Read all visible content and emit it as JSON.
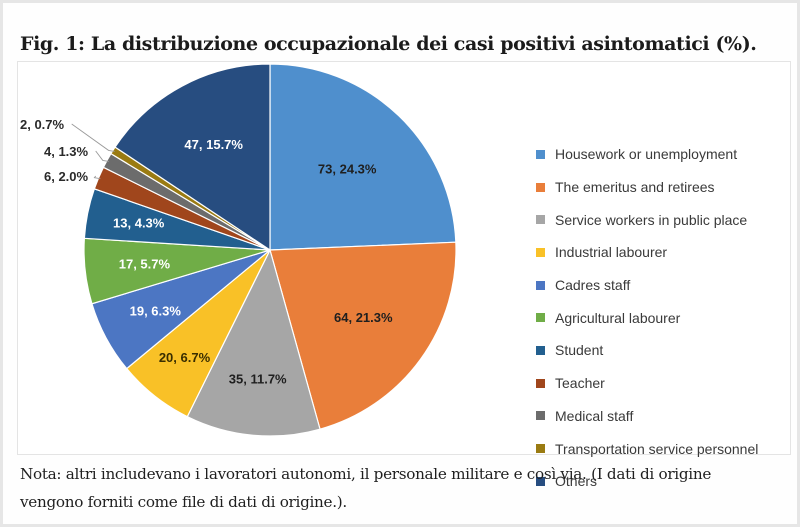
{
  "title": "Fig. 1: La distribuzione occupazionale dei casi positivi asintomatici (%).",
  "note": {
    "line1": "Nota: altri includevano i lavoratori autonomi, il personale militare e così via. (I dati di origine",
    "line2": "vengono forniti come file di dati di origine.)."
  },
  "chart_data": {
    "type": "pie",
    "start": "12 o'clock, clockwise",
    "slices": [
      {
        "label": "Housework or unemployment",
        "value": 73,
        "percent": 24.3,
        "text": "73, 24.3%",
        "color": "#4f8fcd"
      },
      {
        "label": "The emeritus and retirees",
        "value": 64,
        "percent": 21.3,
        "text": "64, 21.3%",
        "color": "#e97e3a"
      },
      {
        "label": "Service workers in public place",
        "value": 35,
        "percent": 11.7,
        "text": "35, 11.7%",
        "color": "#a6a6a6"
      },
      {
        "label": "Industrial labourer",
        "value": 20,
        "percent": 6.7,
        "text": "20, 6.7%",
        "color": "#f9c127"
      },
      {
        "label": "Cadres staff",
        "value": 19,
        "percent": 6.3,
        "text": "19, 6.3%",
        "color": "#4c76c3"
      },
      {
        "label": "Agricultural labourer",
        "value": 17,
        "percent": 5.7,
        "text": "17, 5.7%",
        "color": "#70ad47"
      },
      {
        "label": "Student",
        "value": 13,
        "percent": 4.3,
        "text": "13, 4.3%",
        "color": "#225f8f"
      },
      {
        "label": "Teacher",
        "value": 6,
        "percent": 2.0,
        "text": "6, 2.0%",
        "color": "#a0461c"
      },
      {
        "label": "Medical staff",
        "value": 4,
        "percent": 1.3,
        "text": "4, 1.3%",
        "color": "#6c6c6c"
      },
      {
        "label": "Transportation service personnel",
        "value": 2,
        "percent": 0.7,
        "text": "2, 0.7%",
        "color": "#9a7b12"
      },
      {
        "label": "Others",
        "value": 47,
        "percent": 15.7,
        "text": "47, 15.7%",
        "color": "#274d80"
      }
    ],
    "legend_position": "right"
  }
}
